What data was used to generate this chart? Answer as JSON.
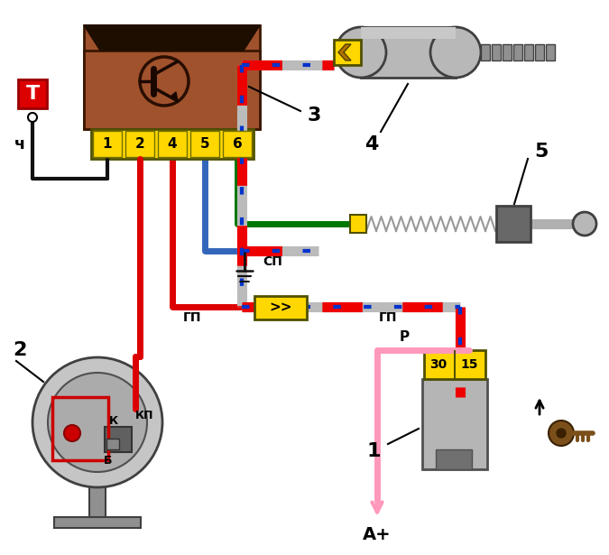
{
  "bg": "#ffffff",
  "fw": 6.75,
  "fh": 6.15,
  "dpi": 100,
  "pin_labels": [
    "1",
    "2",
    "4",
    "5",
    "6"
  ],
  "ig_pins": [
    "30",
    "15"
  ],
  "colors": {
    "brown": "#A0522D",
    "dark_trap": "#1e0e00",
    "yellow": "#FFD700",
    "red": "#DD0000",
    "green": "#007700",
    "blue_wire": "#2244AA",
    "gray": "#909090",
    "light_gray": "#C8C8C8",
    "dark_gray": "#505050",
    "black": "#111111",
    "pink": "#FF99BB",
    "silver": "#B8B8B8",
    "key_brown": "#7B4F1A",
    "stripe_red": "#EE0000",
    "stripe_blue": "#0033CC",
    "stripe_gray": "#BBBBBB"
  },
  "labels": {
    "T": "Т",
    "ch": "ч",
    "gp": "ГП",
    "sp": "СП",
    "kp": "КП",
    "k": "К",
    "b": "Б",
    "ap": "А+",
    "r": "Р",
    "n1": "1",
    "n2": "2",
    "n3": "3",
    "n4": "4",
    "n5": "5"
  }
}
